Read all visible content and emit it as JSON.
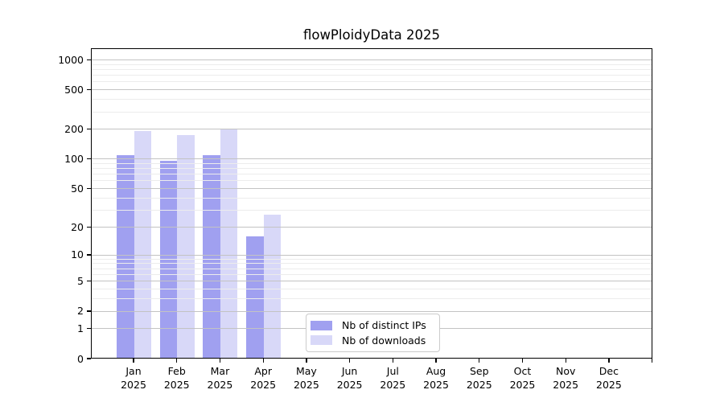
{
  "title": "flowPloidyData 2025",
  "colors": {
    "distinct_ips": "#a0a0f0",
    "downloads": "#d8d8f8",
    "grid_major": "#c3c3c3",
    "grid_minor": "#ececec",
    "spine": "#000000"
  },
  "legend": {
    "items": [
      {
        "label": "Nb of distinct IPs",
        "color": "#a0a0f0"
      },
      {
        "label": "Nb of downloads",
        "color": "#d8d8f8"
      }
    ]
  },
  "chart_data": {
    "type": "bar",
    "title": "flowPloidyData 2025",
    "categories": [
      "Jan",
      "Feb",
      "Mar",
      "Apr",
      "May",
      "Jun",
      "Jul",
      "Aug",
      "Sep",
      "Oct",
      "Nov",
      "Dec"
    ],
    "category_year": "2025",
    "series": [
      {
        "name": "Nb of distinct IPs",
        "color": "#a0a0f0",
        "values": [
          110,
          97,
          110,
          16,
          0,
          0,
          0,
          0,
          0,
          0,
          0,
          0
        ]
      },
      {
        "name": "Nb of downloads",
        "color": "#d8d8f8",
        "values": [
          192,
          175,
          202,
          27,
          0,
          0,
          0,
          0,
          0,
          0,
          0,
          0
        ]
      }
    ],
    "xlabel": "",
    "ylabel": "",
    "y_scale": "log10(1+y)",
    "y_ticks": [
      0,
      1,
      2,
      5,
      10,
      20,
      50,
      100,
      200,
      500,
      1000
    ],
    "y_minor_gridlines": [
      3,
      4,
      6,
      7,
      8,
      9,
      30,
      40,
      60,
      70,
      80,
      90,
      300,
      400,
      600,
      700,
      800,
      900
    ],
    "ylim": [
      0,
      1280
    ],
    "grid": "horizontal, drawn over bars",
    "legend_position": "inside lower center"
  }
}
